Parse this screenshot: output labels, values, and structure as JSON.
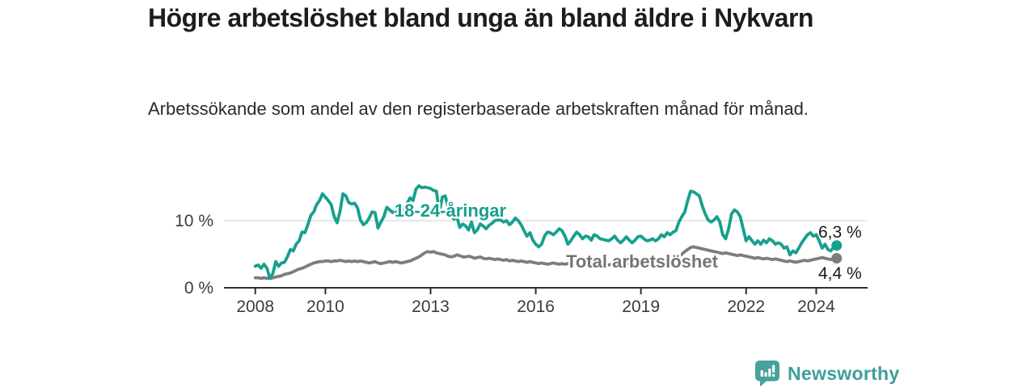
{
  "header": {
    "title": "Högre arbetslöshet bland unga än bland äldre i Nykvarn",
    "subtitle": "Arbetssökande som andel av den registerbaserade arbetskraften månad för månad."
  },
  "chart_data": {
    "type": "line",
    "title": "Högre arbetslöshet bland unga än bland äldre i Nykvarn",
    "subtitle": "Arbetssökande som andel av den registerbaserade arbetskraften månad för månad.",
    "unit": "%",
    "frequency": "monthly",
    "x_start": "2008-01",
    "x_end": "2024-08",
    "x_start_year": 2008,
    "ylim": [
      0,
      16.5
    ],
    "grid": "horizontal-10-only",
    "grid_values": [
      10
    ],
    "legend_position": "inline",
    "xticks": [
      2008,
      2010,
      2013,
      2016,
      2019,
      2022,
      2024
    ],
    "yticks": [
      {
        "value": 0,
        "label": "0 %"
      },
      {
        "value": 10,
        "label": "10 %"
      }
    ],
    "series": [
      {
        "name": "18-24-åringar",
        "color": "#17a08e",
        "label_color": "#17a08e",
        "end_label": "6,3 %",
        "end_value": 6.3,
        "values": [
          3.2,
          3.4,
          2.9,
          3.5,
          2.9,
          1.4,
          2.1,
          3.9,
          3.2,
          3.7,
          3.8,
          4.6,
          5.7,
          5.5,
          6.5,
          7.0,
          8.3,
          8.2,
          9.4,
          10.8,
          11.3,
          12.4,
          13.0,
          14.0,
          13.5,
          13.0,
          12.4,
          10.6,
          9.7,
          11.4,
          14.0,
          13.7,
          12.7,
          12.5,
          12.6,
          11.9,
          10.1,
          9.4,
          9.7,
          10.4,
          11.3,
          11.2,
          8.9,
          9.8,
          10.6,
          12.0,
          11.6,
          11.2,
          11.6,
          11.0,
          10.6,
          12.0,
          12.6,
          13.4,
          13.0,
          14.7,
          15.2,
          14.9,
          15.0,
          14.9,
          14.8,
          14.5,
          14.4,
          11.2,
          13.5,
          13.7,
          12.0,
          11.0,
          10.2,
          10.6,
          9.0,
          9.5,
          9.2,
          8.6,
          9.8,
          8.2,
          8.6,
          9.5,
          9.2,
          8.8,
          9.3,
          9.6,
          10.0,
          10.1,
          10.1,
          9.8,
          10.0,
          9.4,
          9.8,
          10.4,
          10.0,
          9.4,
          8.5,
          7.7,
          8.2,
          7.1,
          6.5,
          6.1,
          6.5,
          7.7,
          8.3,
          8.2,
          7.9,
          8.3,
          8.8,
          8.5,
          7.7,
          6.5,
          7.0,
          7.7,
          8.3,
          7.9,
          7.3,
          7.7,
          7.6,
          7.1,
          7.9,
          7.7,
          7.3,
          7.2,
          7.1,
          7.0,
          7.3,
          7.7,
          7.1,
          6.7,
          7.1,
          7.6,
          7.1,
          6.7,
          7.1,
          7.6,
          7.7,
          7.3,
          7.0,
          7.1,
          7.3,
          7.0,
          7.3,
          7.9,
          7.6,
          8.2,
          7.9,
          8.3,
          8.5,
          9.8,
          10.6,
          11.3,
          13.0,
          14.4,
          14.3,
          14.0,
          13.7,
          12.2,
          11.0,
          10.1,
          9.8,
          10.1,
          10.6,
          9.8,
          7.9,
          7.3,
          8.8,
          11.0,
          11.6,
          11.3,
          10.6,
          8.8,
          7.0,
          7.6,
          7.0,
          6.5,
          7.0,
          6.5,
          7.1,
          6.7,
          7.3,
          7.0,
          6.5,
          6.7,
          6.5,
          5.9,
          6.1,
          4.9,
          5.5,
          5.2,
          5.9,
          6.7,
          7.3,
          7.9,
          8.2,
          7.7,
          7.9,
          7.0,
          5.9,
          6.5,
          5.7,
          5.5,
          6.1,
          6.3
        ]
      },
      {
        "name": "Total arbetslöshet",
        "color": "#7d7d7d",
        "label_color": "#757575",
        "end_label": "4,4 %",
        "end_value": 4.4,
        "values": [
          1.5,
          1.5,
          1.4,
          1.5,
          1.4,
          1.4,
          1.5,
          1.6,
          1.7,
          1.8,
          2.0,
          2.1,
          2.2,
          2.4,
          2.6,
          2.8,
          2.9,
          3.1,
          3.3,
          3.5,
          3.7,
          3.8,
          3.9,
          3.9,
          4.0,
          4.0,
          3.9,
          4.0,
          4.0,
          4.1,
          4.0,
          3.9,
          4.0,
          3.9,
          4.0,
          3.9,
          4.0,
          3.9,
          3.8,
          3.7,
          3.8,
          3.9,
          3.7,
          3.6,
          3.7,
          3.8,
          3.9,
          3.8,
          3.9,
          3.8,
          3.7,
          3.8,
          3.9,
          4.0,
          4.2,
          4.4,
          4.6,
          4.9,
          5.2,
          5.4,
          5.3,
          5.4,
          5.2,
          5.1,
          5.0,
          4.9,
          4.7,
          4.6,
          4.7,
          4.9,
          4.8,
          4.6,
          4.6,
          4.7,
          4.6,
          4.4,
          4.5,
          4.6,
          4.4,
          4.3,
          4.4,
          4.3,
          4.2,
          4.3,
          4.2,
          4.1,
          4.2,
          4.0,
          4.1,
          4.0,
          3.9,
          4.0,
          3.9,
          3.8,
          3.9,
          3.8,
          3.7,
          3.6,
          3.7,
          3.6,
          3.5,
          3.6,
          3.7,
          3.6,
          3.5,
          3.6,
          3.5,
          3.6,
          3.5,
          3.6,
          3.5,
          3.4,
          3.5,
          3.6,
          3.5,
          3.6,
          3.7,
          3.6,
          3.5,
          3.6,
          3.5,
          3.4,
          3.5,
          3.6,
          3.5,
          3.4,
          3.5,
          3.6,
          3.5,
          3.6,
          3.7,
          3.8,
          3.9,
          3.8,
          3.9,
          4.0,
          3.9,
          4.0,
          4.1,
          4.0,
          4.1,
          4.2,
          4.3,
          4.4,
          4.5,
          4.7,
          5.0,
          5.4,
          5.7,
          6.0,
          6.1,
          6.0,
          5.9,
          5.8,
          5.7,
          5.6,
          5.5,
          5.4,
          5.3,
          5.2,
          5.1,
          5.2,
          5.1,
          5.0,
          4.9,
          4.8,
          4.9,
          4.8,
          4.7,
          4.6,
          4.5,
          4.4,
          4.5,
          4.4,
          4.3,
          4.4,
          4.3,
          4.2,
          4.3,
          4.2,
          4.1,
          4.0,
          3.9,
          4.0,
          3.9,
          3.8,
          3.9,
          4.0,
          4.1,
          4.0,
          4.1,
          4.2,
          4.3,
          4.4,
          4.5,
          4.4,
          4.3,
          4.2,
          4.3,
          4.4
        ]
      }
    ]
  },
  "footer": {
    "brand": "Newsworthy"
  }
}
